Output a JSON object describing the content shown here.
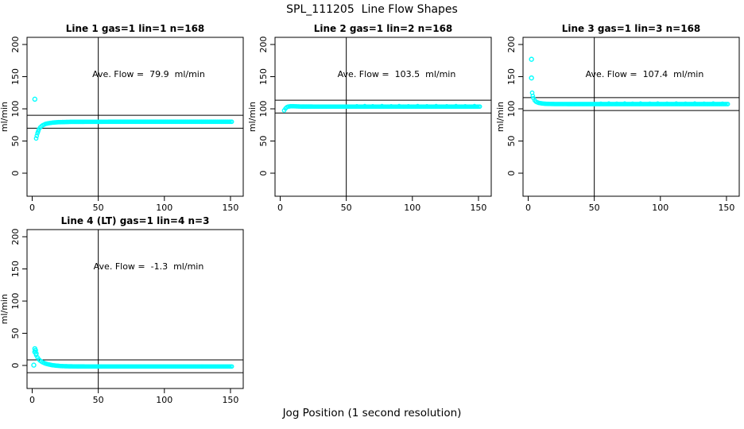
{
  "chart_data": {
    "type": "scatter",
    "title": "SPL_111205  Line Flow Shapes",
    "xlabel": "Jog Position (1 second resolution)",
    "ylabel": "ml/min",
    "x_ticks": [
      0,
      50,
      100,
      150
    ],
    "y_ticks": [
      0,
      50,
      100,
      150,
      200
    ],
    "xlim": [
      -5,
      160
    ],
    "ylim": [
      -36,
      211
    ],
    "vline_x": 50,
    "point_color": "#00FFFF",
    "line_color": "#000000",
    "background_color": "#FFFFFF",
    "grid": false,
    "panels": [
      {
        "title": "Line 1 gas=1 lin=1 n=168",
        "gas": 1,
        "lin": 1,
        "n": 168,
        "ave_flow": 79.9,
        "annotation": "Ave. Flow =  79.9  ml/min",
        "hlines": [
          89.9,
          69.9
        ],
        "outliers": [
          [
            2,
            115
          ]
        ],
        "curve": [
          [
            3,
            54
          ],
          [
            3.5,
            58
          ],
          [
            4,
            62
          ],
          [
            4.5,
            65
          ],
          [
            5,
            68
          ],
          [
            6,
            71
          ],
          [
            7,
            73
          ],
          [
            8,
            74.5
          ],
          [
            10,
            76.5
          ],
          [
            12,
            77.5
          ],
          [
            15,
            78.5
          ],
          [
            20,
            79.3
          ],
          [
            30,
            79.8
          ],
          [
            60,
            79.9
          ],
          [
            151,
            79.9
          ]
        ],
        "extras": []
      },
      {
        "title": "Line 2 gas=1 lin=2 n=168",
        "gas": 1,
        "lin": 2,
        "n": 168,
        "ave_flow": 103.5,
        "annotation": "Ave. Flow =  103.5  ml/min",
        "hlines": [
          113.5,
          93.5
        ],
        "outliers": [],
        "curve": [
          [
            3,
            97.5
          ],
          [
            4,
            100.5
          ],
          [
            5,
            102.5
          ],
          [
            6,
            103.5
          ],
          [
            8,
            104
          ],
          [
            10,
            104
          ],
          [
            15,
            103.6
          ],
          [
            25,
            103.5
          ],
          [
            151,
            103.5
          ]
        ],
        "extras": [
          [
            58,
            105
          ],
          [
            64,
            105.2
          ],
          [
            70,
            105
          ],
          [
            77,
            105.3
          ],
          [
            84,
            105
          ],
          [
            90,
            105.2
          ],
          [
            97,
            105
          ],
          [
            104,
            105.3
          ],
          [
            111,
            105
          ],
          [
            118,
            105.2
          ],
          [
            126,
            105
          ],
          [
            133,
            105.3
          ],
          [
            140,
            105
          ],
          [
            147,
            105.2
          ]
        ]
      },
      {
        "title": "Line 3 gas=1 lin=3 n=168",
        "gas": 1,
        "lin": 3,
        "n": 168,
        "ave_flow": 107.4,
        "annotation": "Ave. Flow =  107.4  ml/min",
        "hlines": [
          117.4,
          97.4
        ],
        "outliers": [
          [
            2.5,
            177
          ],
          [
            2.5,
            148
          ]
        ],
        "curve": [
          [
            3,
            125
          ],
          [
            3.5,
            120
          ],
          [
            4,
            116.5
          ],
          [
            5,
            113
          ],
          [
            6,
            111
          ],
          [
            7,
            110
          ],
          [
            8,
            109.3
          ],
          [
            10,
            108.5
          ],
          [
            12,
            108
          ],
          [
            15,
            107.7
          ],
          [
            20,
            107.5
          ],
          [
            40,
            107.4
          ],
          [
            151,
            107.4
          ]
        ],
        "extras": [
          [
            55,
            109
          ],
          [
            61,
            109.2
          ],
          [
            67,
            109
          ],
          [
            73,
            109.3
          ],
          [
            79,
            109
          ],
          [
            85,
            109.2
          ],
          [
            92,
            109
          ],
          [
            98,
            109.3
          ],
          [
            105,
            109
          ],
          [
            112,
            109.2
          ],
          [
            119,
            109
          ],
          [
            126,
            109.3
          ],
          [
            133,
            109
          ],
          [
            140,
            109.2
          ],
          [
            147,
            109
          ]
        ]
      },
      {
        "title": "Line 4 (LT) gas=1 lin=4 n=3",
        "gas": 1,
        "lin": 4,
        "n": 3,
        "ave_flow": -1.3,
        "annotation": "Ave. Flow =  -1.3  ml/min",
        "hlines": [
          8.7,
          -11.3
        ],
        "outliers": [
          [
            2,
            26
          ],
          [
            2,
            21
          ],
          [
            2.5,
            23.5
          ],
          [
            3,
            18.5
          ],
          [
            1.2,
            0.5
          ]
        ],
        "curve": [
          [
            3,
            16
          ],
          [
            4,
            12.5
          ],
          [
            5,
            9.5
          ],
          [
            6,
            7.5
          ],
          [
            7,
            6
          ],
          [
            8,
            4.8
          ],
          [
            10,
            3
          ],
          [
            12,
            1.8
          ],
          [
            15,
            0.5
          ],
          [
            18,
            -0.3
          ],
          [
            22,
            -1
          ],
          [
            28,
            -1.4
          ],
          [
            40,
            -1.6
          ],
          [
            151,
            -1.6
          ]
        ],
        "extras": []
      }
    ]
  }
}
